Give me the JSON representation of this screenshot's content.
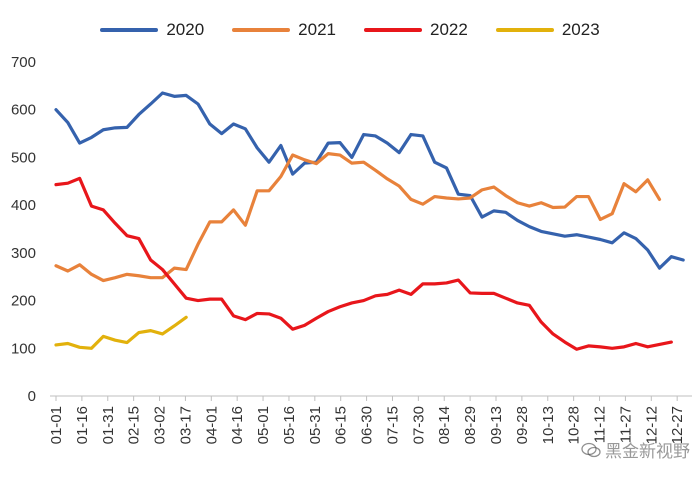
{
  "legend": [
    {
      "name": "2020",
      "color": "#3562AD"
    },
    {
      "name": "2021",
      "color": "#E8823B"
    },
    {
      "name": "2022",
      "color": "#E8161B"
    },
    {
      "name": "2023",
      "color": "#E2B10C"
    }
  ],
  "watermark": {
    "text": "黑金新视野",
    "icon": "wechat-icon"
  },
  "chart_data": {
    "type": "line",
    "title": "",
    "xlabel": "",
    "ylabel": "",
    "ylim": [
      0,
      700
    ],
    "yticks": [
      0,
      100,
      200,
      300,
      400,
      500,
      600,
      700
    ],
    "grid": false,
    "legend_position": "top",
    "xtick_labels": [
      "01-01",
      "01-16",
      "01-31",
      "02-15",
      "03-02",
      "03-17",
      "04-01",
      "04-16",
      "05-01",
      "05-16",
      "05-31",
      "06-15",
      "06-30",
      "07-15",
      "07-30",
      "08-14",
      "08-29",
      "09-13",
      "09-28",
      "10-13",
      "10-28",
      "11-12",
      "11-27",
      "12-12",
      "12-27"
    ],
    "series": [
      {
        "name": "2020",
        "color": "#3562AD",
        "values": [
          600,
          573,
          530,
          542,
          558,
          562,
          563,
          590,
          612,
          635,
          628,
          630,
          612,
          570,
          550,
          570,
          560,
          520,
          490,
          525,
          465,
          488,
          490,
          530,
          531,
          500,
          548,
          545,
          530,
          510,
          548,
          545,
          490,
          478,
          423,
          420,
          375,
          388,
          385,
          368,
          355,
          345,
          340,
          335,
          338,
          333,
          328,
          321,
          342,
          330,
          306,
          268,
          292,
          285
        ]
      },
      {
        "name": "2021",
        "color": "#E8823B",
        "values": [
          273,
          262,
          275,
          255,
          242,
          248,
          255,
          252,
          248,
          248,
          268,
          265,
          318,
          365,
          365,
          390,
          358,
          430,
          430,
          460,
          505,
          495,
          487,
          508,
          505,
          488,
          490,
          473,
          455,
          440,
          412,
          402,
          418,
          415,
          413,
          415,
          432,
          438,
          420,
          405,
          398,
          405,
          395,
          396,
          418,
          418,
          370,
          382,
          445,
          428,
          453,
          412
        ]
      },
      {
        "name": "2022",
        "color": "#E8161B",
        "values": [
          443,
          446,
          456,
          398,
          390,
          362,
          336,
          330,
          285,
          265,
          235,
          205,
          200,
          203,
          203,
          168,
          160,
          173,
          172,
          163,
          140,
          148,
          163,
          177,
          187,
          195,
          200,
          210,
          213,
          222,
          213,
          235,
          235,
          237,
          243,
          216,
          215,
          215,
          205,
          195,
          190,
          155,
          130,
          113,
          98,
          105,
          103,
          100,
          103,
          110,
          103,
          108,
          113
        ]
      },
      {
        "name": "2023",
        "color": "#E2B10C",
        "values": [
          107,
          110,
          102,
          100,
          125,
          117,
          112,
          133,
          137,
          130,
          147,
          165
        ]
      }
    ]
  }
}
